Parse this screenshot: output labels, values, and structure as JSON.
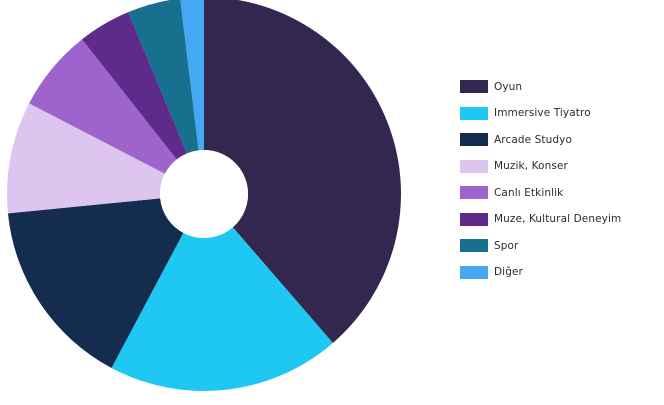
{
  "chart_data": {
    "type": "pie",
    "title": "",
    "donut": true,
    "legend_position": "right",
    "series": [
      {
        "name": "Oyun",
        "value": 40,
        "color": "#332750"
      },
      {
        "name": "Immersive Tiyatro",
        "value": 19.8,
        "color": "#1ec8f2"
      },
      {
        "name": "Arcade Studyo",
        "value": 16.2,
        "color": "#142c4e"
      },
      {
        "name": "Muzik, Konser",
        "value": 9.5,
        "color": "#ddc5f0"
      },
      {
        "name": "Canlı Etkinlik",
        "value": 7,
        "color": "#9e63cc"
      },
      {
        "name": "Muze, Kultural Deneyim",
        "value": 4.5,
        "color": "#5e2a8c"
      },
      {
        "name": "Spor",
        "value": 4.5,
        "color": "#17708e"
      },
      {
        "name": "Diğer",
        "value": 2,
        "color": "#44a8f4"
      }
    ]
  }
}
